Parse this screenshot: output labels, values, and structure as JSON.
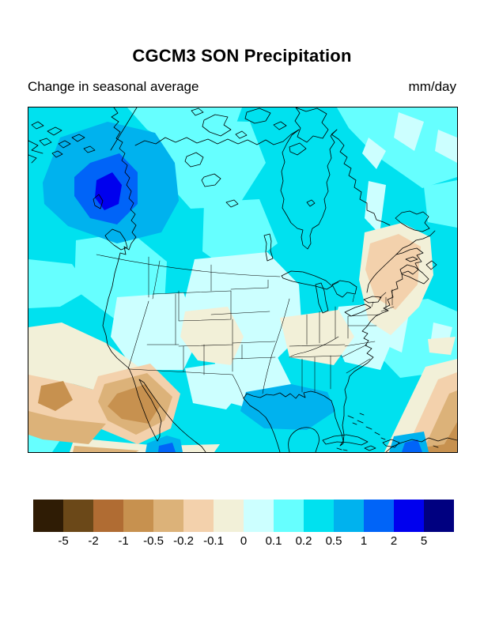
{
  "header": {
    "title": "CGCM3 SON Precipitation",
    "subtitle_left": "Change in seasonal average",
    "units_label": "mm/day"
  },
  "colorbar": {
    "orientation": "horizontal",
    "tick_labels": [
      "-5",
      "-2",
      "-1",
      "-0.5",
      "-0.2",
      "-0.1",
      "0",
      "0.1",
      "0.2",
      "0.5",
      "1",
      "2",
      "5"
    ],
    "segment_colors": [
      "#2f1c05",
      "#6b4818",
      "#b06c33",
      "#c7914f",
      "#dcb279",
      "#f3d1ac",
      "#f2f0d8",
      "#ccffff",
      "#66ffff",
      "#00e1ef",
      "#00b2ee",
      "#0064f8",
      "#0000ee",
      "#000080"
    ]
  },
  "chart_data": {
    "type": "heatmap",
    "title": "CGCM3 SON Precipitation",
    "subtitle": "Change in seasonal average",
    "units": "mm/day",
    "region_shown": "North America with surrounding oceans (Arctic Canada to Caribbean, Pacific to Atlantic)",
    "legend_position": "bottom",
    "colorbar_levels": [
      -5,
      -2,
      -1,
      -0.5,
      -0.2,
      -0.1,
      0,
      0.1,
      0.2,
      0.5,
      1,
      2,
      5
    ],
    "colorbar_colors": [
      "#2f1c05",
      "#6b4818",
      "#b06c33",
      "#c7914f",
      "#dcb279",
      "#f3d1ac",
      "#f2f0d8",
      "#ccffff",
      "#66ffff",
      "#00e1ef",
      "#00b2ee",
      "#0064f8",
      "#0000ee",
      "#000080"
    ],
    "features": [
      {
        "region": "British Columbia / Pacific Northwest coast",
        "value_mm_day": "+1 to +5",
        "note": "strongest wet anomaly, nested blue contours"
      },
      {
        "region": "Gulf of Mexico off Louisiana",
        "value_mm_day": "+0.5 to +1",
        "note": "bright blue patch"
      },
      {
        "region": "most of Canada, Hudson Bay and open oceans",
        "value_mm_day": "+0.2 to +0.5",
        "note": "cyan background"
      },
      {
        "region": "central and western United States interior",
        "value_mm_day": "0 to +0.2",
        "note": "pale cyan band"
      },
      {
        "region": "Colorado-New Mexico and Tennessee valley",
        "value_mm_day": "-0.1 to 0",
        "note": "cream patches"
      },
      {
        "region": "Canadian Maritimes / Gulf of St. Lawrence / New England",
        "value_mm_day": "-0.5 to -0.1",
        "note": "cream and peach dry patch"
      },
      {
        "region": "subtropical Pacific off Baja California",
        "value_mm_day": "-1 to -0.2",
        "note": "tan bands with darker diamond cores"
      },
      {
        "region": "Caribbean / tropical Atlantic (southeast corner)",
        "value_mm_day": "-1 to -0.2",
        "note": "tan bands toward corner"
      }
    ]
  }
}
